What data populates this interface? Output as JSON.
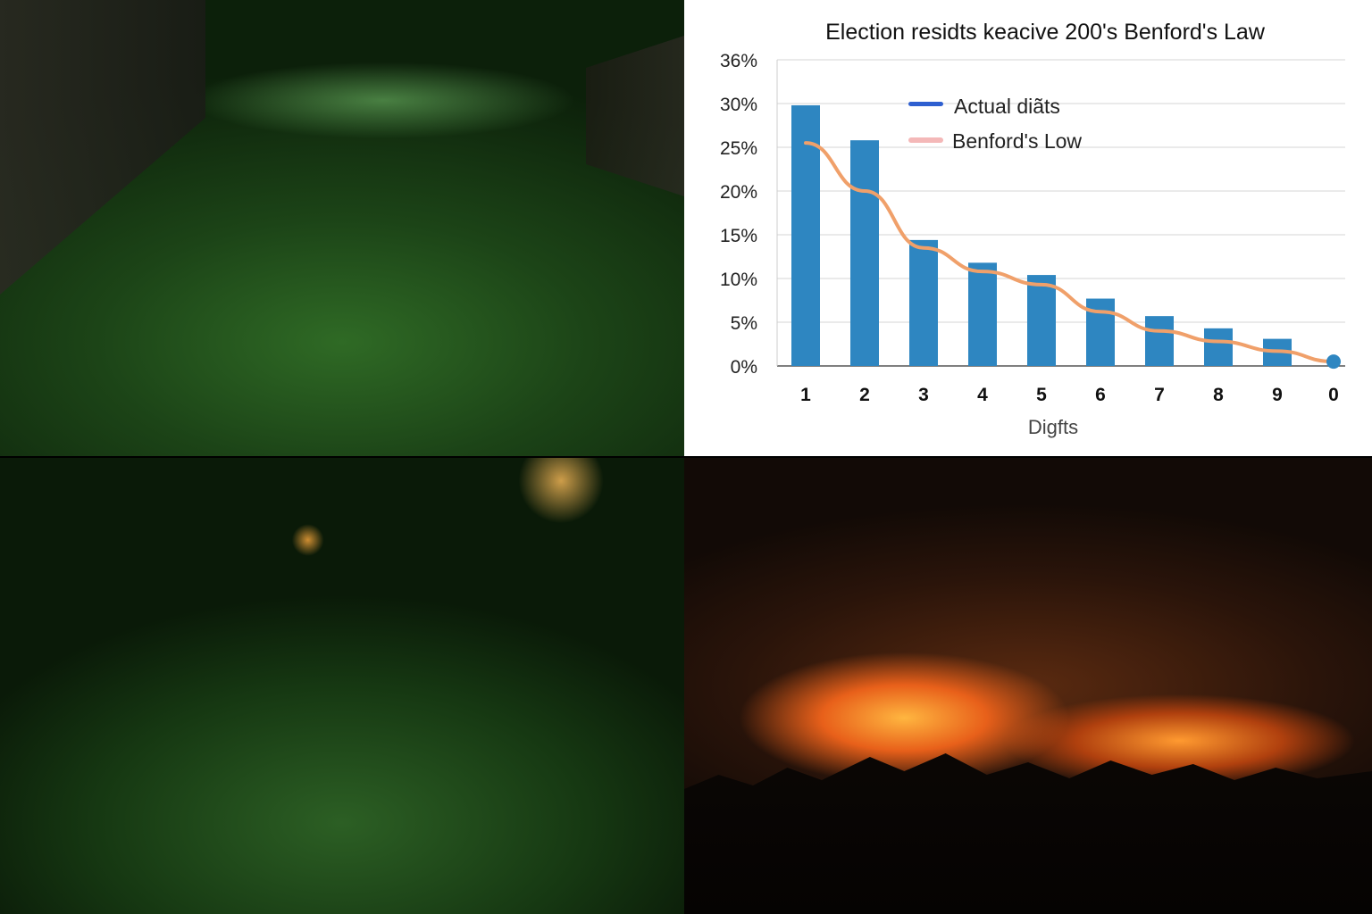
{
  "panels": {
    "top_left": "crowd-photo",
    "bottom_left": "rally-photo",
    "bottom_right": "fire-photo"
  },
  "chart_data": {
    "type": "bar",
    "title": "Election residts keacive 200's Benford's Law",
    "xlabel": "Digfts",
    "ylabel": "",
    "categories": [
      "1",
      "2",
      "3",
      "4",
      "5",
      "6",
      "7",
      "8",
      "9",
      "0"
    ],
    "y_tick_labels": [
      "0%",
      "5%",
      "10%",
      "15%",
      "20%",
      "25%",
      "30%",
      "36%"
    ],
    "ylim": [
      0,
      35
    ],
    "grid": true,
    "legend_position": "top-center",
    "series": [
      {
        "name": "Actual diãts",
        "type": "bar",
        "color": "#2e86c1",
        "values": [
          29.8,
          25.8,
          14.4,
          11.8,
          10.4,
          7.7,
          5.7,
          4.3,
          3.1,
          null
        ]
      },
      {
        "name": "Benford's Low",
        "type": "line",
        "color": "#f0a06a",
        "values": [
          25.5,
          20.0,
          13.5,
          10.8,
          9.3,
          6.2,
          4.0,
          2.8,
          1.7,
          0.5
        ]
      }
    ]
  }
}
